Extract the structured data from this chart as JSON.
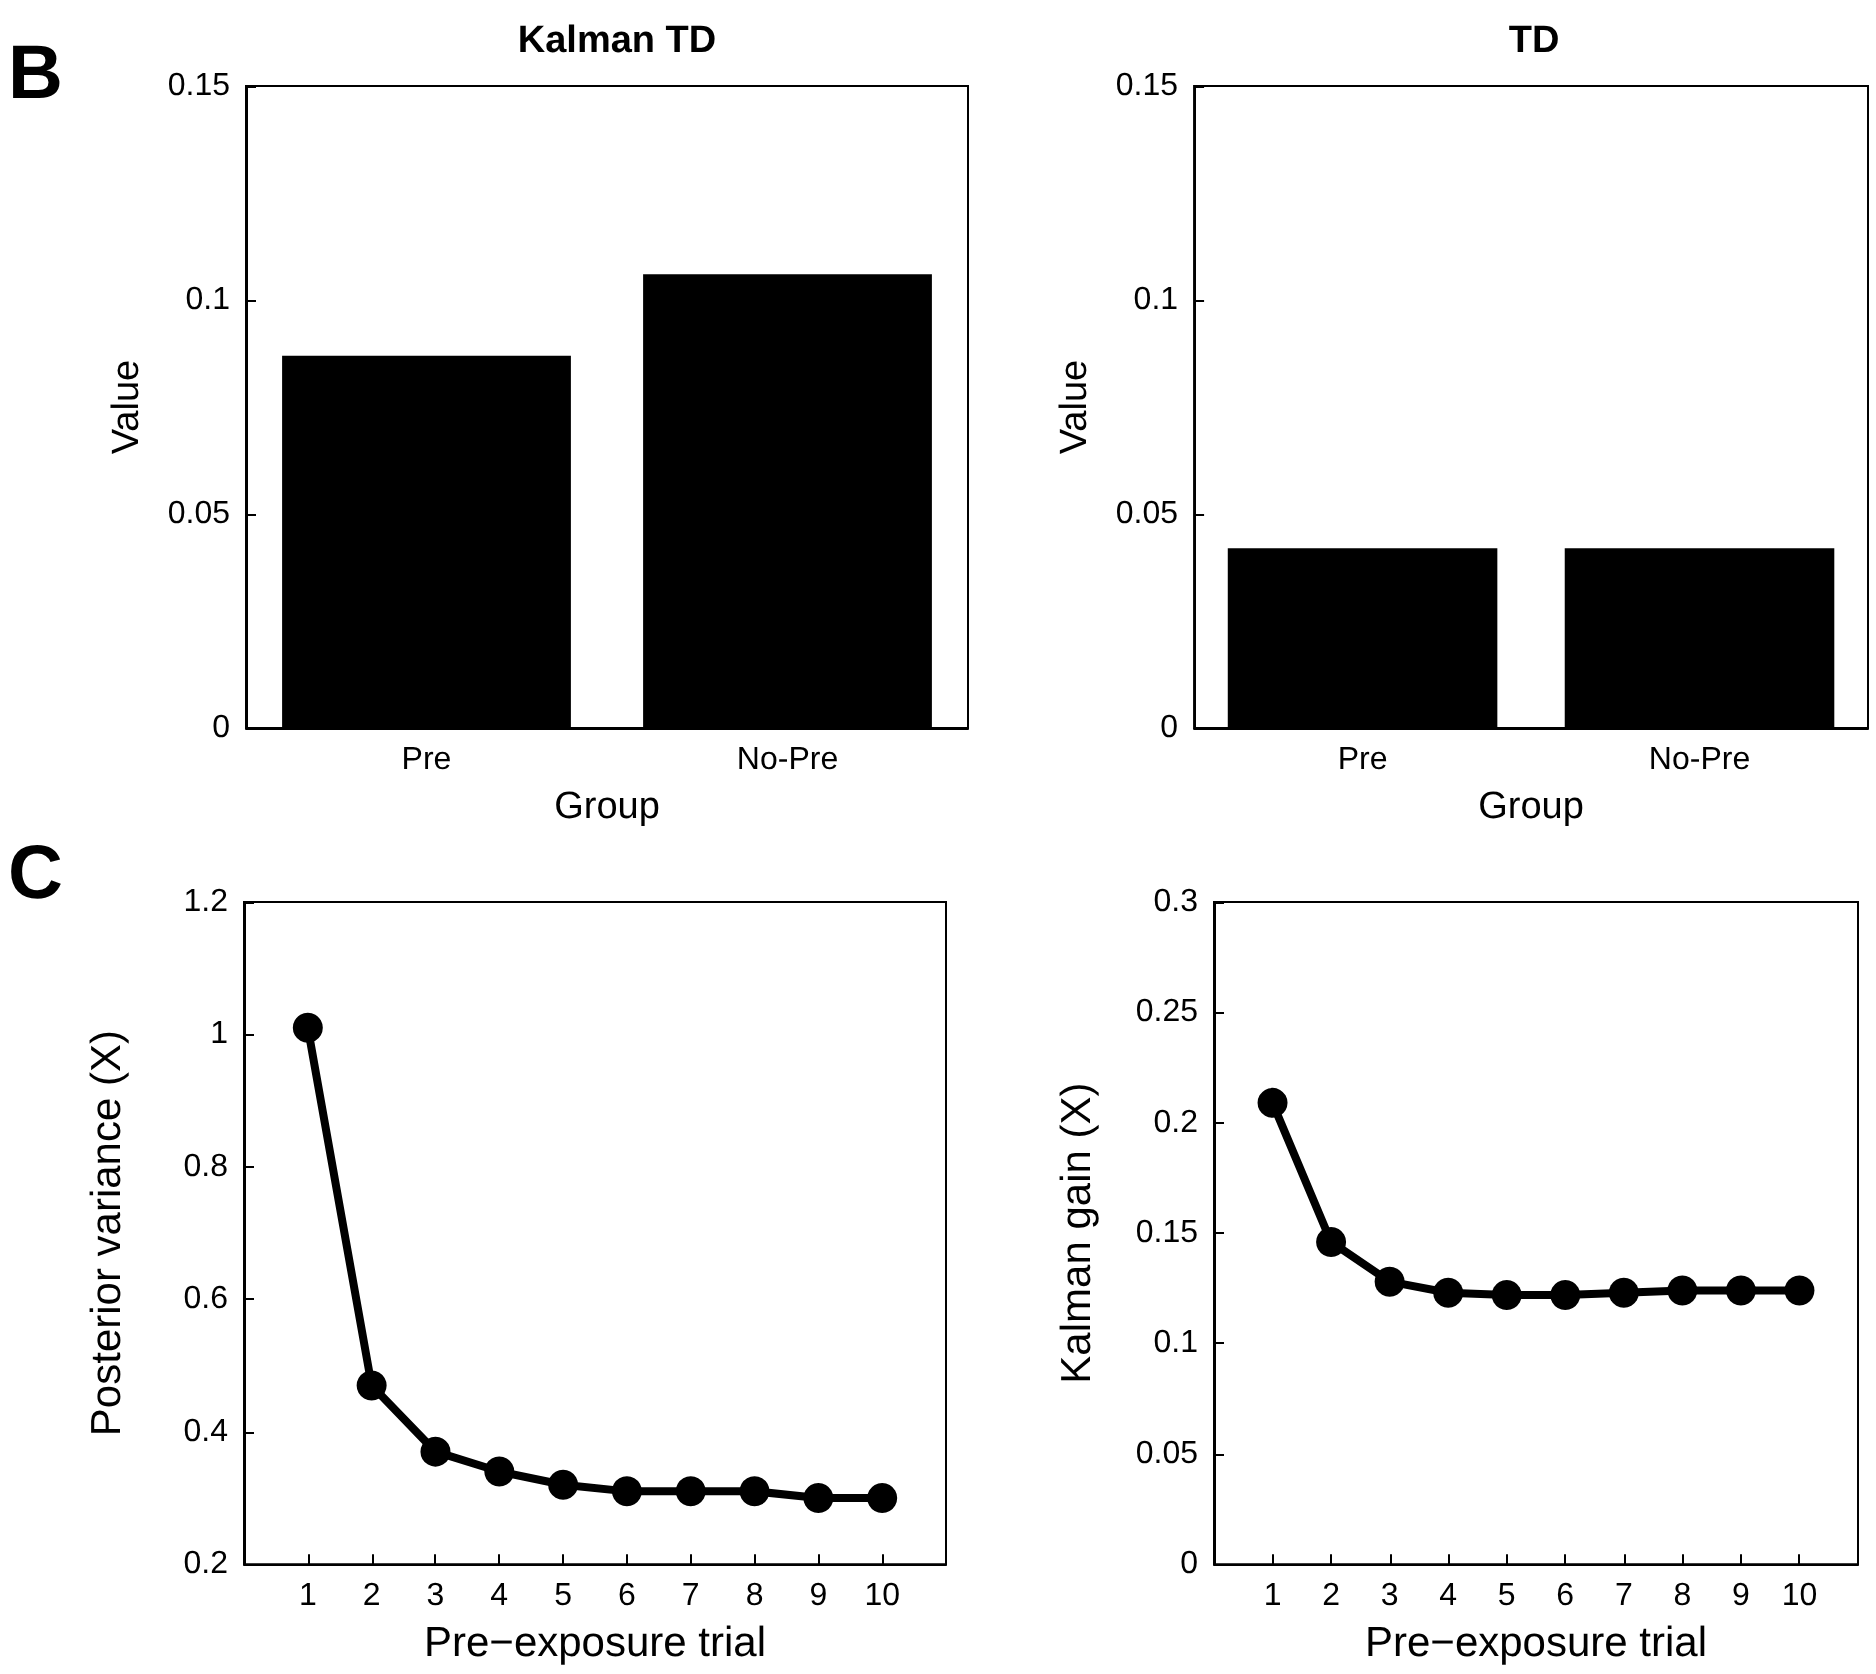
{
  "chart_data": [
    {
      "type": "bar",
      "title": "Kalman TD",
      "ylabel": "Value",
      "xlabel": "Group",
      "annotations": [
        "B"
      ],
      "categories": [
        "Pre",
        "No-Pre"
      ],
      "values": [
        0.087,
        0.106
      ],
      "color": "#000000",
      "ylim": [
        0,
        0.15
      ],
      "yticks": [
        0,
        0.05,
        0.1,
        0.15
      ],
      "grid": false
    },
    {
      "type": "bar",
      "title": "TD",
      "ylabel": "Value",
      "xlabel": "Group",
      "categories": [
        "Pre",
        "No-Pre"
      ],
      "values": [
        0.042,
        0.042
      ],
      "color": "#000000",
      "ylim": [
        0,
        0.15
      ],
      "yticks": [
        0,
        0.05,
        0.1,
        0.15
      ],
      "grid": false
    },
    {
      "type": "line",
      "ylabel": "Posterior variance (X)",
      "xlabel": "Pre−exposure trial",
      "annotations": [
        "C"
      ],
      "x": [
        1,
        2,
        3,
        4,
        5,
        6,
        7,
        8,
        9,
        10
      ],
      "values": [
        1.01,
        0.47,
        0.37,
        0.34,
        0.32,
        0.31,
        0.31,
        0.31,
        0.3,
        0.3
      ],
      "color": "#000000",
      "marker": "circle",
      "line_style": "solid",
      "xlim": [
        0,
        11
      ],
      "xticks": [
        1,
        2,
        3,
        4,
        5,
        6,
        7,
        8,
        9,
        10
      ],
      "ylim": [
        0.2,
        1.2
      ],
      "yticks": [
        0.2,
        0.4,
        0.6,
        0.8,
        1,
        1.2
      ],
      "grid": false
    },
    {
      "type": "line",
      "ylabel": "Kalman gain (X)",
      "xlabel": "Pre−exposure trial",
      "x": [
        1,
        2,
        3,
        4,
        5,
        6,
        7,
        8,
        9,
        10
      ],
      "values": [
        0.209,
        0.146,
        0.128,
        0.123,
        0.122,
        0.122,
        0.123,
        0.124,
        0.124,
        0.124
      ],
      "color": "#000000",
      "marker": "circle",
      "line_style": "solid",
      "xlim": [
        0,
        11
      ],
      "xticks": [
        1,
        2,
        3,
        4,
        5,
        6,
        7,
        8,
        9,
        10
      ],
      "ylim": [
        0,
        0.3
      ],
      "yticks": [
        0,
        0.05,
        0.1,
        0.15,
        0.2,
        0.25,
        0.3
      ],
      "grid": false
    }
  ]
}
